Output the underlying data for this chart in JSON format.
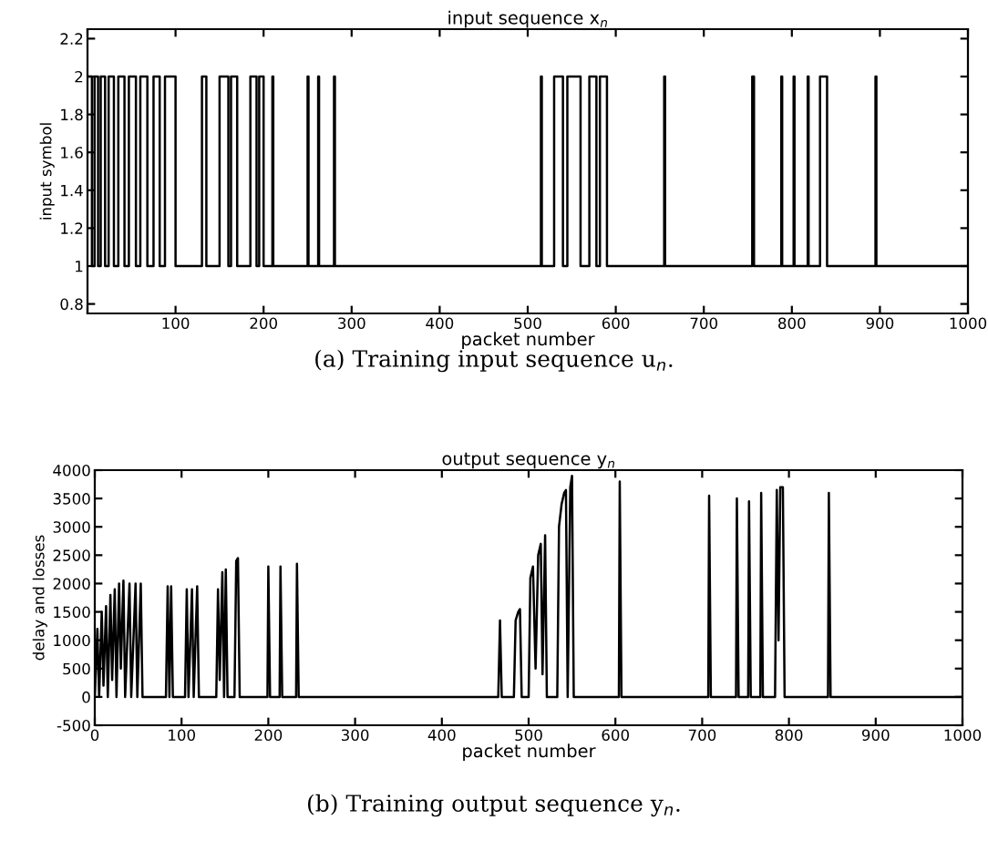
{
  "chart_data": [
    {
      "type": "step",
      "title": "input sequence x$_{n}$",
      "xlabel": "packet number",
      "ylabel": "input symbol",
      "annotations": [
        "(a) Training input sequence u$_{n}$."
      ],
      "color": "#000000",
      "x": [
        0,
        5,
        8,
        12,
        15,
        20,
        24,
        30,
        35,
        42,
        47,
        55,
        60,
        68,
        75,
        82,
        88,
        100,
        130,
        135,
        150,
        160,
        163,
        170,
        185,
        192,
        195,
        200,
        210,
        211,
        250,
        251,
        262,
        263,
        280,
        281,
        515,
        516,
        530,
        540,
        545,
        560,
        570,
        578,
        582,
        590,
        655,
        656,
        755,
        757,
        788,
        789,
        802,
        803,
        818,
        819,
        832,
        840,
        895,
        896,
        1000
      ],
      "values": [
        2,
        1,
        2,
        1,
        2,
        1,
        2,
        1,
        2,
        1,
        2,
        1,
        2,
        1,
        2,
        1,
        2,
        1,
        2,
        1,
        2,
        1,
        2,
        1,
        2,
        1,
        2,
        1,
        2,
        1,
        2,
        1,
        2,
        1,
        2,
        1,
        2,
        1,
        2,
        1,
        2,
        1,
        2,
        1,
        2,
        1,
        2,
        1,
        2,
        1,
        2,
        1,
        2,
        1,
        2,
        1,
        2,
        1,
        2,
        1,
        1
      ],
      "xlim": [
        0,
        1000
      ],
      "ylim": [
        0.75,
        2.25
      ],
      "xticks": [
        {
          "value": 0,
          "label": null
        },
        100,
        200,
        300,
        400,
        500,
        600,
        700,
        800,
        900,
        1000
      ],
      "yticks": [
        0.8,
        1,
        1.2,
        1.4,
        1.6,
        1.8,
        2,
        2.2
      ]
    },
    {
      "type": "line",
      "title": "output sequence y$_{n}$",
      "xlabel": "packet number",
      "ylabel": "delay and losses",
      "annotations": [
        "(b) Training output sequence y$_{n}$."
      ],
      "color": "#000000",
      "x": [
        0,
        3,
        5,
        8,
        10,
        13,
        15,
        18,
        20,
        23,
        25,
        28,
        30,
        33,
        35,
        40,
        42,
        47,
        49,
        53,
        55,
        82,
        84,
        86,
        88,
        90,
        104,
        106,
        108,
        112,
        114,
        118,
        120,
        140,
        142,
        144,
        147,
        149,
        151,
        153,
        161,
        163,
        165,
        167,
        199,
        200,
        202,
        213,
        214,
        216,
        232,
        233,
        235,
        465,
        467,
        469,
        483,
        485,
        488,
        490,
        492,
        500,
        502,
        505,
        508,
        511,
        514,
        516,
        519,
        521,
        533,
        535,
        538,
        541,
        543,
        545,
        548,
        550,
        552,
        604,
        605,
        607,
        707,
        708,
        710,
        739,
        740,
        742,
        753,
        754,
        756,
        767,
        768,
        770,
        784,
        786,
        788,
        790,
        793,
        795,
        845,
        846,
        848,
        1000
      ],
      "values": [
        0,
        1200,
        0,
        1500,
        200,
        1600,
        0,
        1800,
        300,
        1900,
        0,
        2000,
        500,
        2050,
        0,
        2000,
        0,
        2000,
        0,
        2000,
        0,
        0,
        1950,
        0,
        1950,
        0,
        0,
        1900,
        0,
        1900,
        0,
        1950,
        0,
        0,
        1900,
        300,
        2200,
        0,
        2250,
        0,
        0,
        2400,
        2450,
        0,
        0,
        2300,
        0,
        0,
        2300,
        0,
        0,
        2350,
        0,
        0,
        1350,
        0,
        0,
        1350,
        1500,
        1550,
        0,
        0,
        2100,
        2300,
        500,
        2500,
        2700,
        400,
        2850,
        0,
        0,
        3000,
        3400,
        3600,
        3650,
        0,
        3700,
        3900,
        0,
        0,
        3800,
        0,
        0,
        3550,
        0,
        0,
        3500,
        0,
        0,
        3450,
        0,
        0,
        3600,
        0,
        0,
        3650,
        1000,
        3700,
        3700,
        0,
        0,
        3600,
        0,
        0
      ],
      "xlim": [
        0,
        1000
      ],
      "ylim": [
        -500,
        4000
      ],
      "xticks": [
        0,
        100,
        200,
        300,
        400,
        500,
        600,
        700,
        800,
        900,
        1000
      ],
      "yticks": [
        -500,
        0,
        500,
        1000,
        1500,
        2000,
        2500,
        3000,
        3500,
        4000
      ]
    }
  ]
}
